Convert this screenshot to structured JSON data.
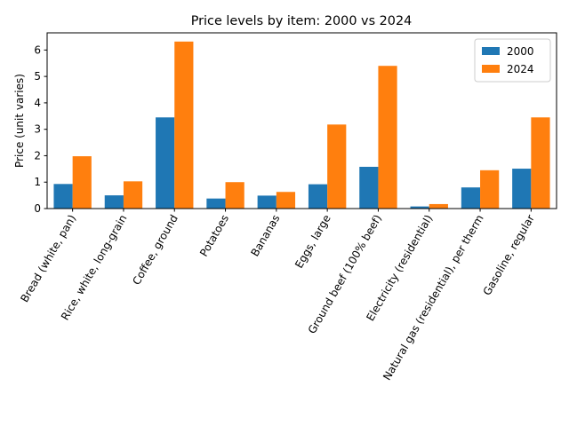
{
  "chart_data": {
    "type": "bar",
    "title": "Price levels by item: 2000 vs 2024",
    "xlabel": "",
    "ylabel": "Price (unit varies)",
    "ylim": [
      0,
      6.65
    ],
    "yticks": [
      0,
      1,
      2,
      3,
      4,
      5,
      6
    ],
    "grid": false,
    "legend_position": "top-right",
    "categories": [
      "Bread (white, pan)",
      "Rice, white, long-grain",
      "Coffee, ground",
      "Potatoes",
      "Bananas",
      "Eggs, large",
      "Ground beef (100% beef)",
      "Electricity (residential)",
      "Natural gas (residential), per therm",
      "Gasoline, regular"
    ],
    "series": [
      {
        "name": "2000",
        "color": "#1f77b4",
        "values": [
          0.93,
          0.5,
          3.45,
          0.38,
          0.49,
          0.92,
          1.58,
          0.08,
          0.8,
          1.51
        ]
      },
      {
        "name": "2024",
        "color": "#ff7f0e",
        "values": [
          1.98,
          1.03,
          6.32,
          1.0,
          0.63,
          3.18,
          5.4,
          0.17,
          1.45,
          3.45
        ]
      }
    ]
  }
}
